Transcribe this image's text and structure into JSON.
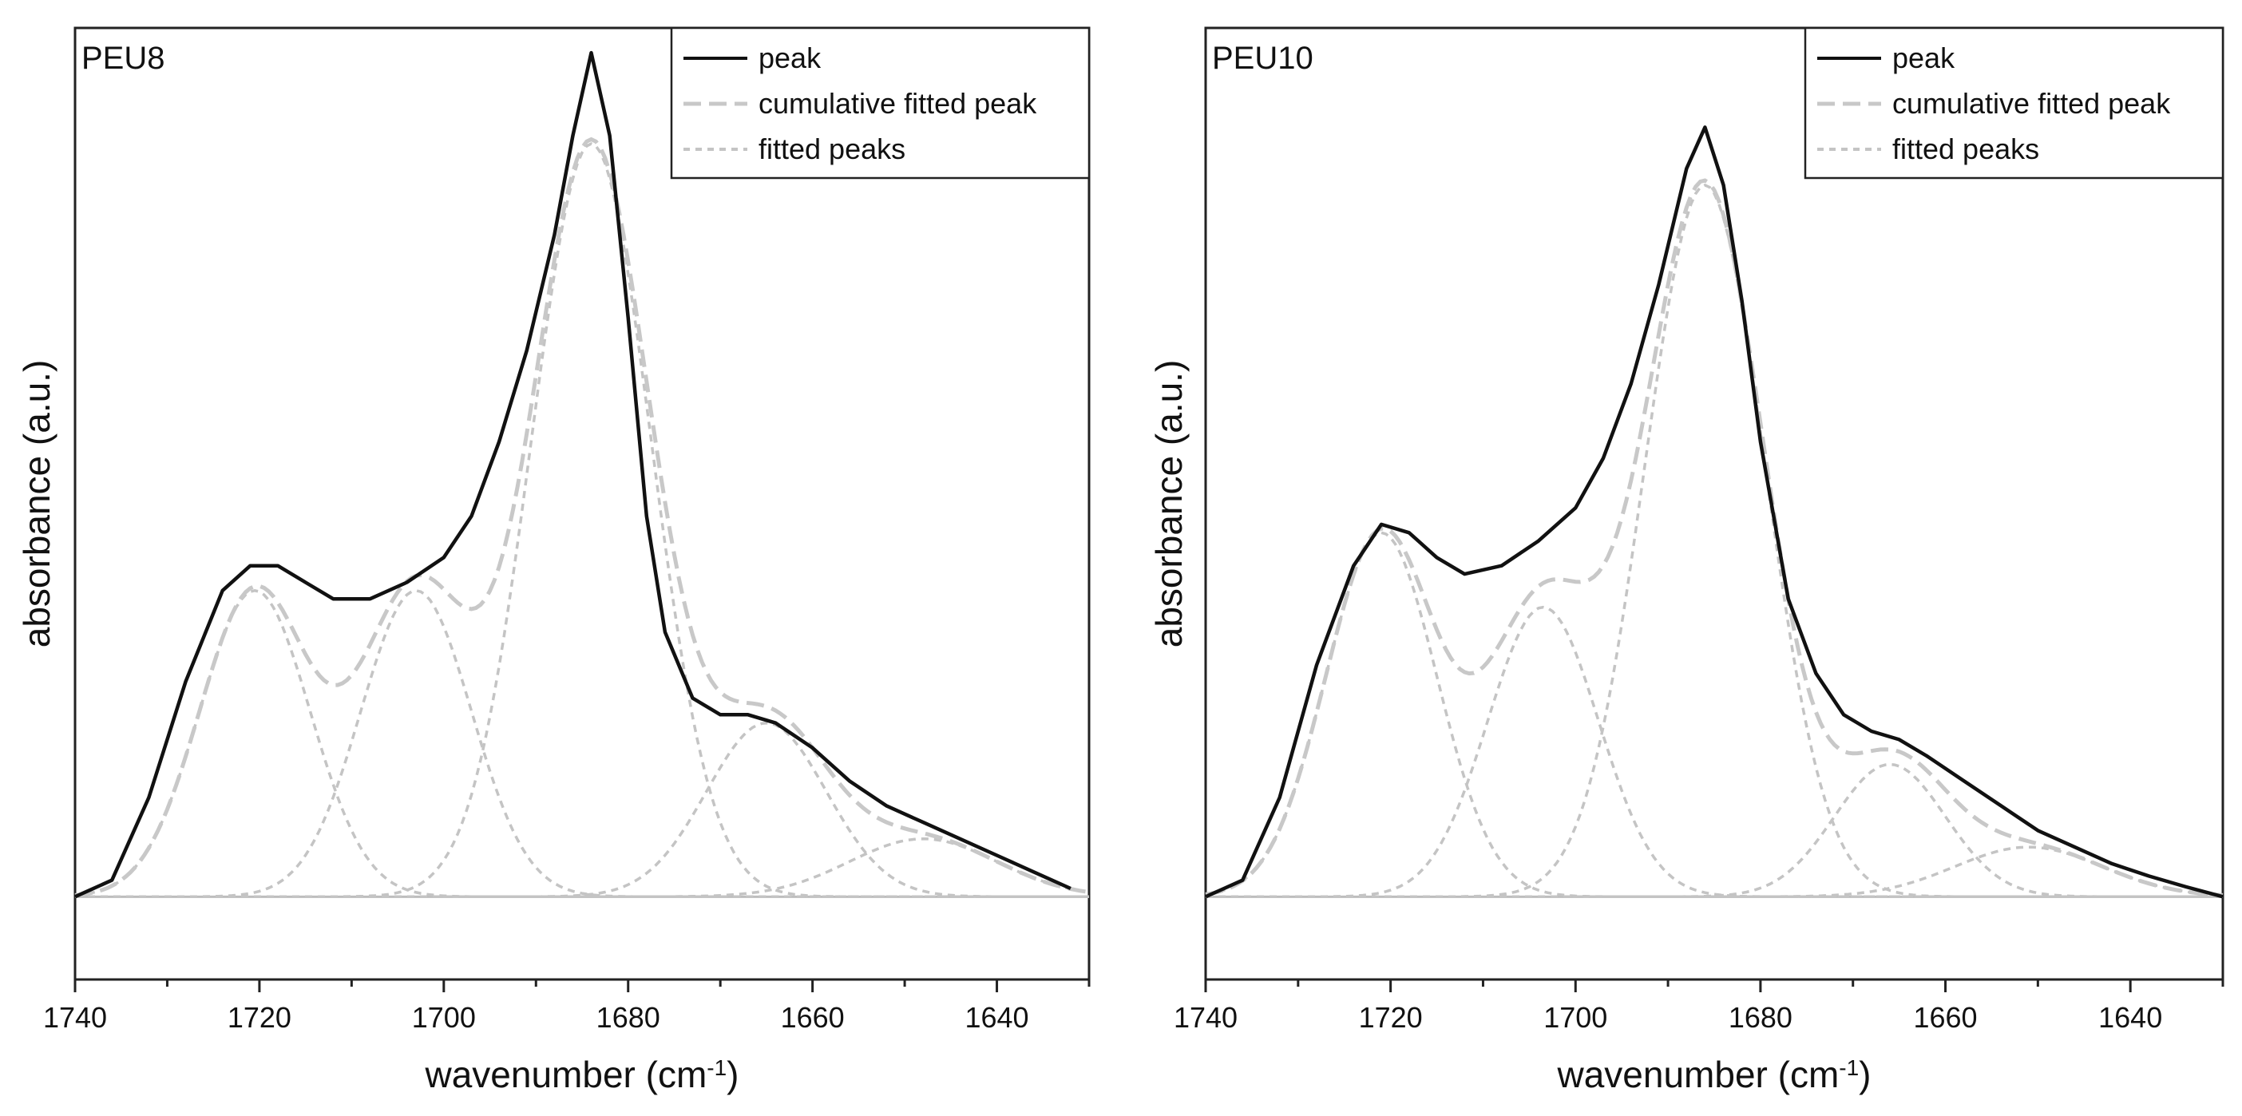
{
  "chart_data": [
    {
      "type": "line",
      "panel_label": "PEU8",
      "xlabel": "wavenumber (cm",
      "xlabel_sup": "-1",
      "xlabel_tail": ")",
      "ylabel": "absorbance (a.u.)",
      "xlim": [
        1740,
        1630
      ],
      "ylim": [
        -0.1,
        1.05
      ],
      "xticks": [
        1740,
        1720,
        1700,
        1680,
        1660,
        1640
      ],
      "grid": false,
      "legend_position": "top-right",
      "legend": [
        "peak",
        "cumulative fitted peak",
        "fitted peaks"
      ],
      "series": [
        {
          "name": "peak",
          "style": "solid",
          "x": [
            1740,
            1736,
            1732,
            1728,
            1724,
            1721,
            1718,
            1715,
            1712,
            1708,
            1704,
            1700,
            1697,
            1694,
            1691,
            1688,
            1686,
            1684,
            1682,
            1680,
            1678,
            1676,
            1673,
            1670,
            1667,
            1664,
            1660,
            1656,
            1652,
            1648,
            1644,
            1640,
            1636,
            1632
          ],
          "y": [
            0.0,
            0.02,
            0.12,
            0.26,
            0.37,
            0.4,
            0.4,
            0.38,
            0.36,
            0.36,
            0.38,
            0.41,
            0.46,
            0.55,
            0.66,
            0.8,
            0.92,
            1.02,
            0.92,
            0.7,
            0.46,
            0.32,
            0.24,
            0.22,
            0.22,
            0.21,
            0.18,
            0.14,
            0.11,
            0.09,
            0.07,
            0.05,
            0.03,
            0.01
          ]
        }
      ],
      "fitted_peaks": [
        {
          "center": 1720.5,
          "amplitude": 0.37,
          "width": 6.0
        },
        {
          "center": 1703.0,
          "amplitude": 0.37,
          "width": 6.0
        },
        {
          "center": 1684.0,
          "amplitude": 0.91,
          "width": 6.5
        },
        {
          "center": 1665.0,
          "amplitude": 0.21,
          "width": 6.5
        },
        {
          "center": 1648.0,
          "amplitude": 0.07,
          "width": 8.0
        }
      ]
    },
    {
      "type": "line",
      "panel_label": "PEU10",
      "xlabel": "wavenumber (cm",
      "xlabel_sup": "-1",
      "xlabel_tail": ")",
      "ylabel": "absorbance (a.u.)",
      "xlim": [
        1740,
        1630
      ],
      "ylim": [
        -0.1,
        1.05
      ],
      "xticks": [
        1740,
        1720,
        1700,
        1680,
        1660,
        1640
      ],
      "grid": false,
      "legend_position": "top-right",
      "legend": [
        "peak",
        "cumulative fitted peak",
        "fitted peaks"
      ],
      "series": [
        {
          "name": "peak",
          "style": "solid",
          "x": [
            1740,
            1736,
            1732,
            1728,
            1724,
            1721,
            1718,
            1715,
            1712,
            1708,
            1704,
            1700,
            1697,
            1694,
            1691,
            1688,
            1686,
            1684,
            1682,
            1680,
            1677,
            1674,
            1671,
            1668,
            1665,
            1662,
            1658,
            1654,
            1650,
            1646,
            1642,
            1638,
            1634,
            1630
          ],
          "y": [
            0.0,
            0.02,
            0.12,
            0.28,
            0.4,
            0.45,
            0.44,
            0.41,
            0.39,
            0.4,
            0.43,
            0.47,
            0.53,
            0.62,
            0.74,
            0.88,
            0.93,
            0.86,
            0.72,
            0.55,
            0.36,
            0.27,
            0.22,
            0.2,
            0.19,
            0.17,
            0.14,
            0.11,
            0.08,
            0.06,
            0.04,
            0.025,
            0.012,
            0.0
          ]
        }
      ],
      "fitted_peaks": [
        {
          "center": 1721.0,
          "amplitude": 0.44,
          "width": 6.0
        },
        {
          "center": 1703.5,
          "amplitude": 0.35,
          "width": 6.0
        },
        {
          "center": 1686.0,
          "amplitude": 0.86,
          "width": 6.5
        },
        {
          "center": 1666.0,
          "amplitude": 0.16,
          "width": 6.0
        },
        {
          "center": 1651.0,
          "amplitude": 0.06,
          "width": 8.0
        }
      ]
    }
  ],
  "colors": {
    "peak_line": "#111111",
    "fitted": "#c4c4c4",
    "cumulative": "#c8c8c8",
    "baseline": "#bdbdbd"
  }
}
